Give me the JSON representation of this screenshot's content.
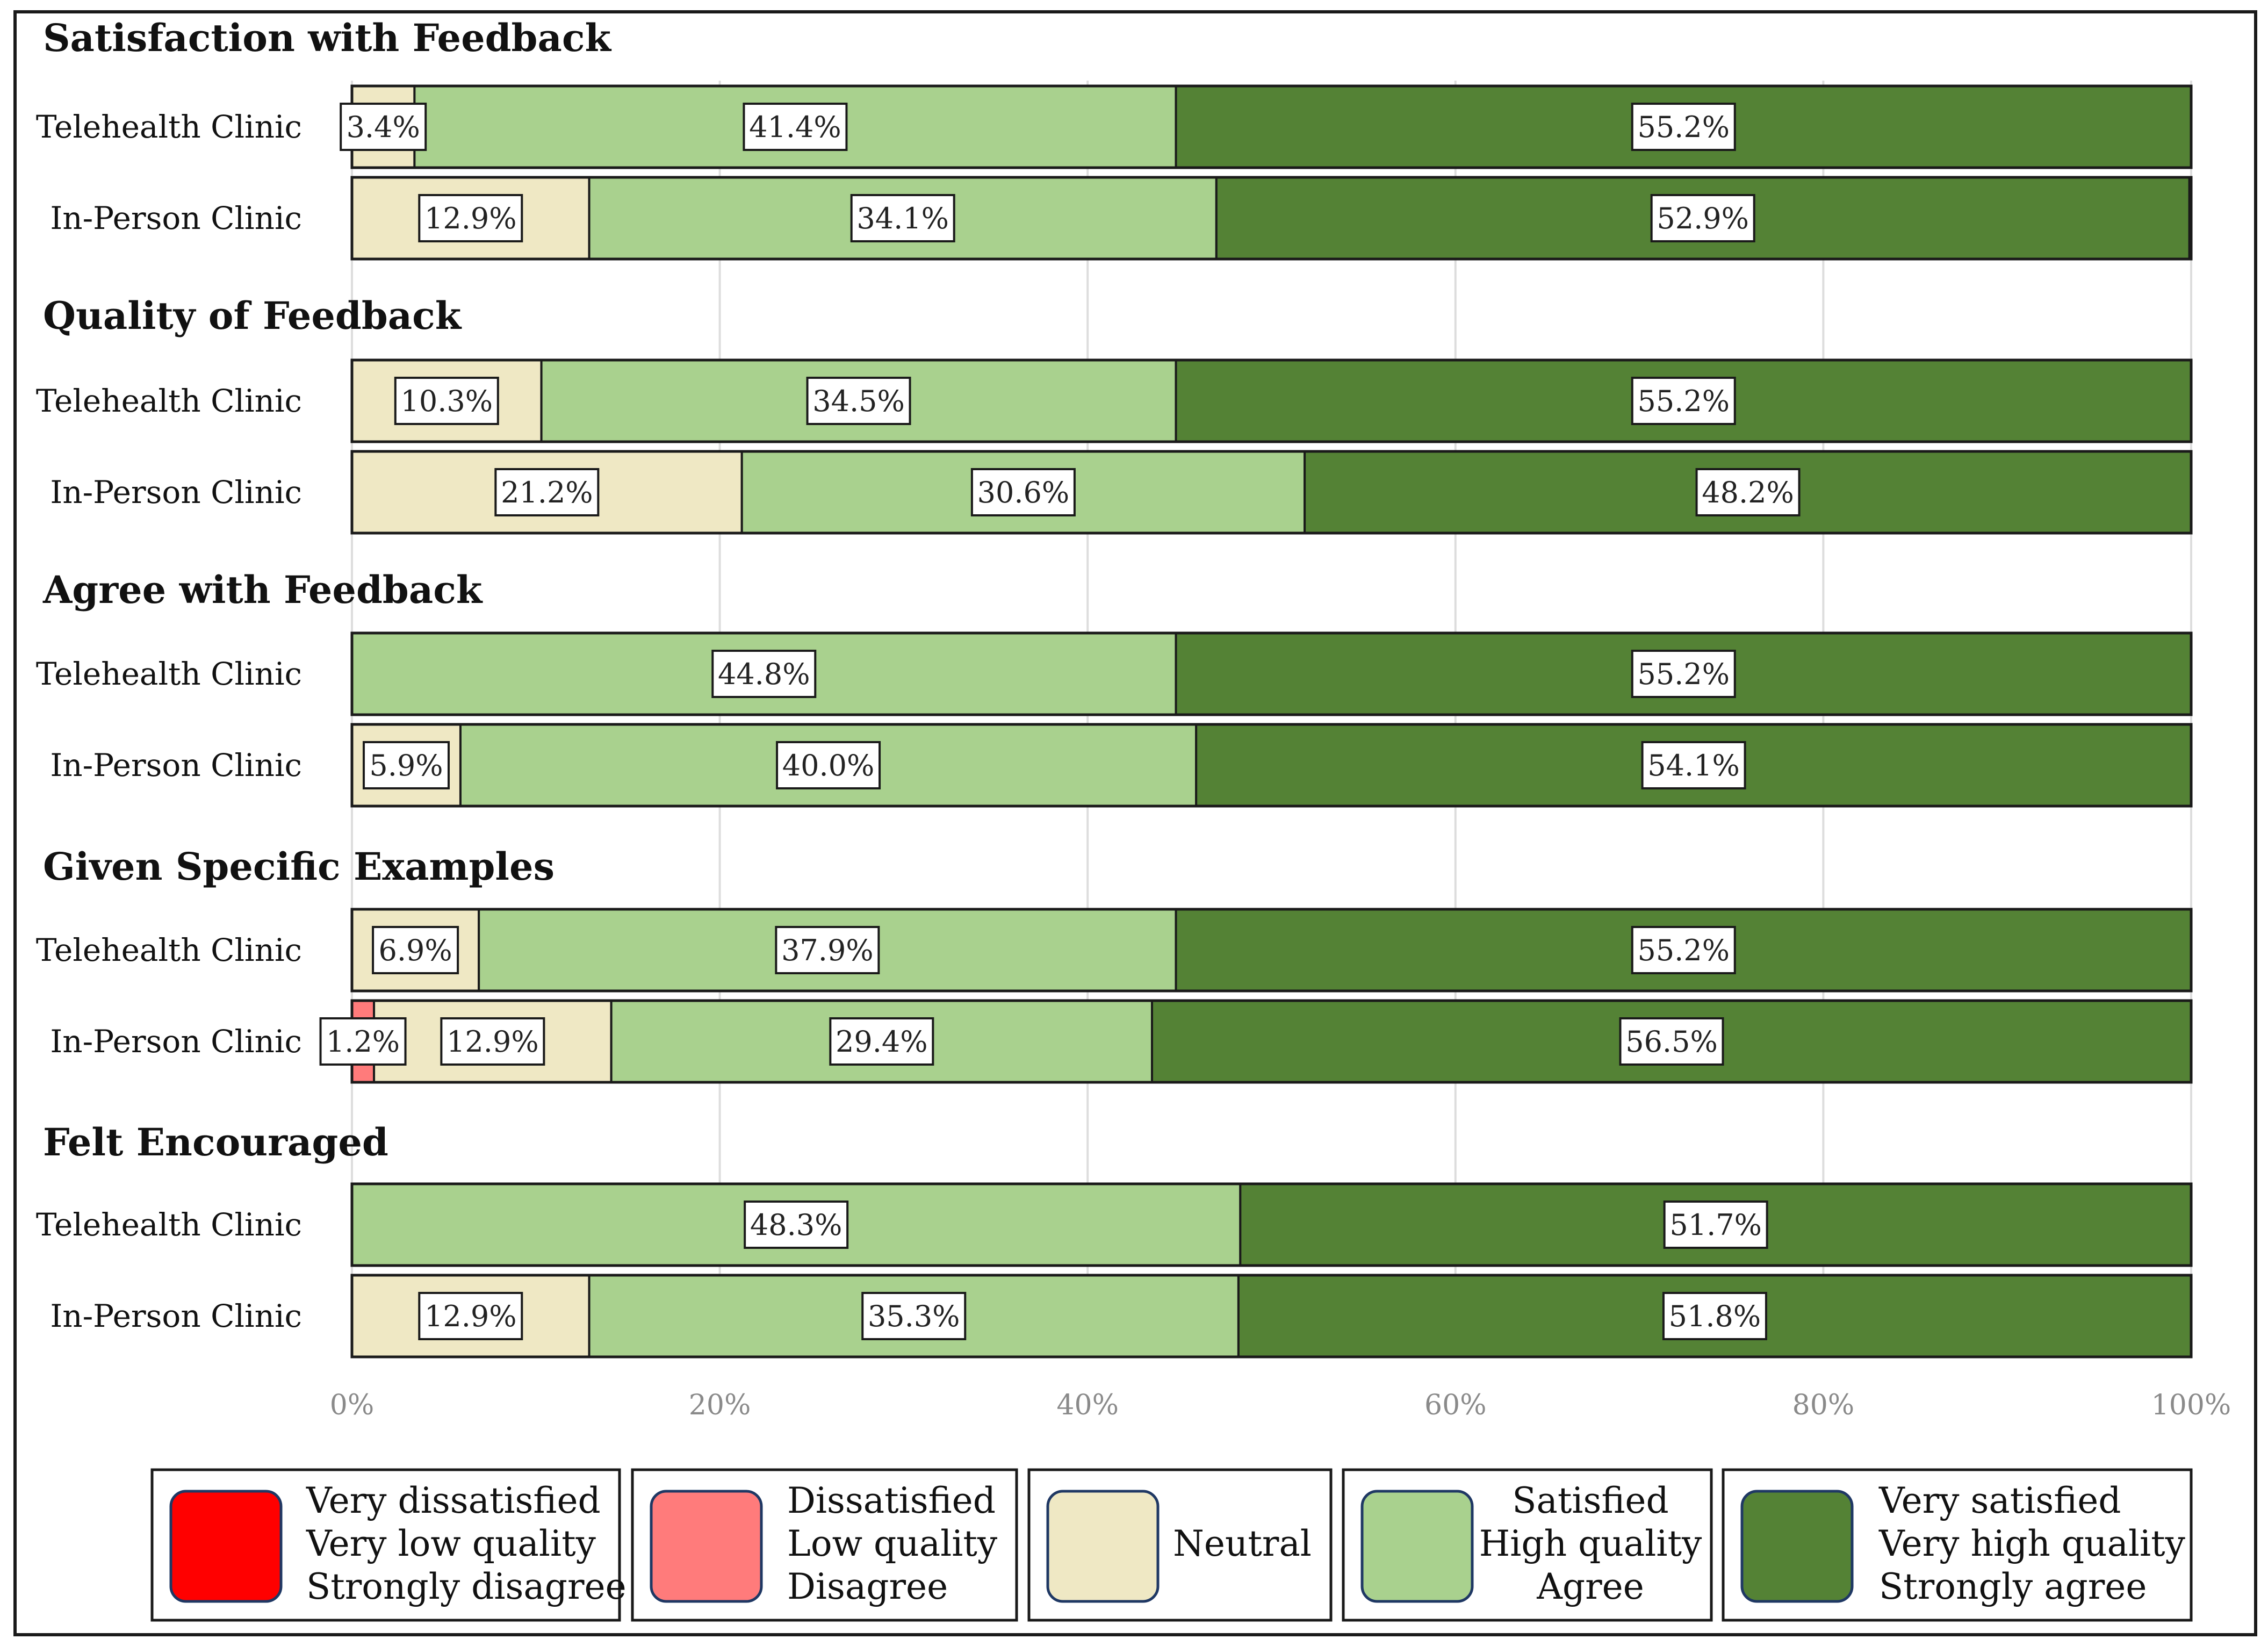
{
  "chart_data": {
    "type": "bar",
    "orientation": "horizontal",
    "stacked": true,
    "normalized_percent": true,
    "xlim": [
      0,
      100
    ],
    "x_ticks": [
      "0%",
      "20%",
      "40%",
      "60%",
      "80%",
      "100%"
    ],
    "grid": true,
    "legend_position": "bottom",
    "categories": [
      "Telehealth Clinic",
      "In-Person Clinic"
    ],
    "levels": [
      {
        "key": "very_low",
        "lines": [
          "Very dissatisfied",
          "Very low quality",
          "Strongly disagree"
        ],
        "color": "#ff0000"
      },
      {
        "key": "low",
        "lines": [
          "Dissatisfied",
          "Low quality",
          "Disagree"
        ],
        "color": "#ff7b7b"
      },
      {
        "key": "neutral",
        "lines": [
          "Neutral"
        ],
        "color": "#efe8c4"
      },
      {
        "key": "high",
        "lines": [
          "Satisfied",
          "High quality",
          "Agree"
        ],
        "color": "#a9d18e"
      },
      {
        "key": "very_high",
        "lines": [
          "Very satisfied",
          "Very high quality",
          "Strongly agree"
        ],
        "color": "#548235"
      }
    ],
    "groups": [
      {
        "title": "Satisfaction with Feedback",
        "rows": [
          {
            "label": "Telehealth Clinic",
            "values": [
              0,
              0,
              3.4,
              41.4,
              55.2
            ],
            "labels": [
              "",
              "",
              "3.4%",
              "41.4%",
              "55.2%"
            ]
          },
          {
            "label": "In-Person Clinic",
            "values": [
              0,
              0,
              12.9,
              34.1,
              52.9
            ],
            "labels": [
              "",
              "",
              "12.9%",
              "34.1%",
              "52.9%"
            ]
          }
        ]
      },
      {
        "title": "Quality of Feedback",
        "rows": [
          {
            "label": "Telehealth Clinic",
            "values": [
              0,
              0,
              10.3,
              34.5,
              55.2
            ],
            "labels": [
              "",
              "",
              "10.3%",
              "34.5%",
              "55.2%"
            ]
          },
          {
            "label": "In-Person Clinic",
            "values": [
              0,
              0,
              21.2,
              30.6,
              48.2
            ],
            "labels": [
              "",
              "",
              "21.2%",
              "30.6%",
              "48.2%"
            ]
          }
        ]
      },
      {
        "title": "Agree with Feedback",
        "rows": [
          {
            "label": "Telehealth Clinic",
            "values": [
              0,
              0,
              0,
              44.8,
              55.2
            ],
            "labels": [
              "",
              "",
              "",
              "44.8%",
              "55.2%"
            ]
          },
          {
            "label": "In-Person Clinic",
            "values": [
              0,
              0,
              5.9,
              40.0,
              54.1
            ],
            "labels": [
              "",
              "",
              "5.9%",
              "40.0%",
              "54.1%"
            ]
          }
        ]
      },
      {
        "title": "Given Specific Examples",
        "rows": [
          {
            "label": "Telehealth Clinic",
            "values": [
              0,
              0,
              6.9,
              37.9,
              55.2
            ],
            "labels": [
              "",
              "",
              "6.9%",
              "37.9%",
              "55.2%"
            ]
          },
          {
            "label": "In-Person Clinic",
            "values": [
              0,
              1.2,
              12.9,
              29.4,
              56.5
            ],
            "labels": [
              "",
              "1.2%",
              "12.9%",
              "29.4%",
              "56.5%"
            ]
          }
        ]
      },
      {
        "title": "Felt Encouraged",
        "rows": [
          {
            "label": "Telehealth Clinic",
            "values": [
              0,
              0,
              0,
              48.3,
              51.7
            ],
            "labels": [
              "",
              "",
              "",
              "48.3%",
              "51.7%"
            ]
          },
          {
            "label": "In-Person Clinic",
            "values": [
              0,
              0,
              12.9,
              35.3,
              51.8
            ],
            "labels": [
              "",
              "",
              "12.9%",
              "35.3%",
              "51.8%"
            ]
          }
        ]
      }
    ]
  }
}
